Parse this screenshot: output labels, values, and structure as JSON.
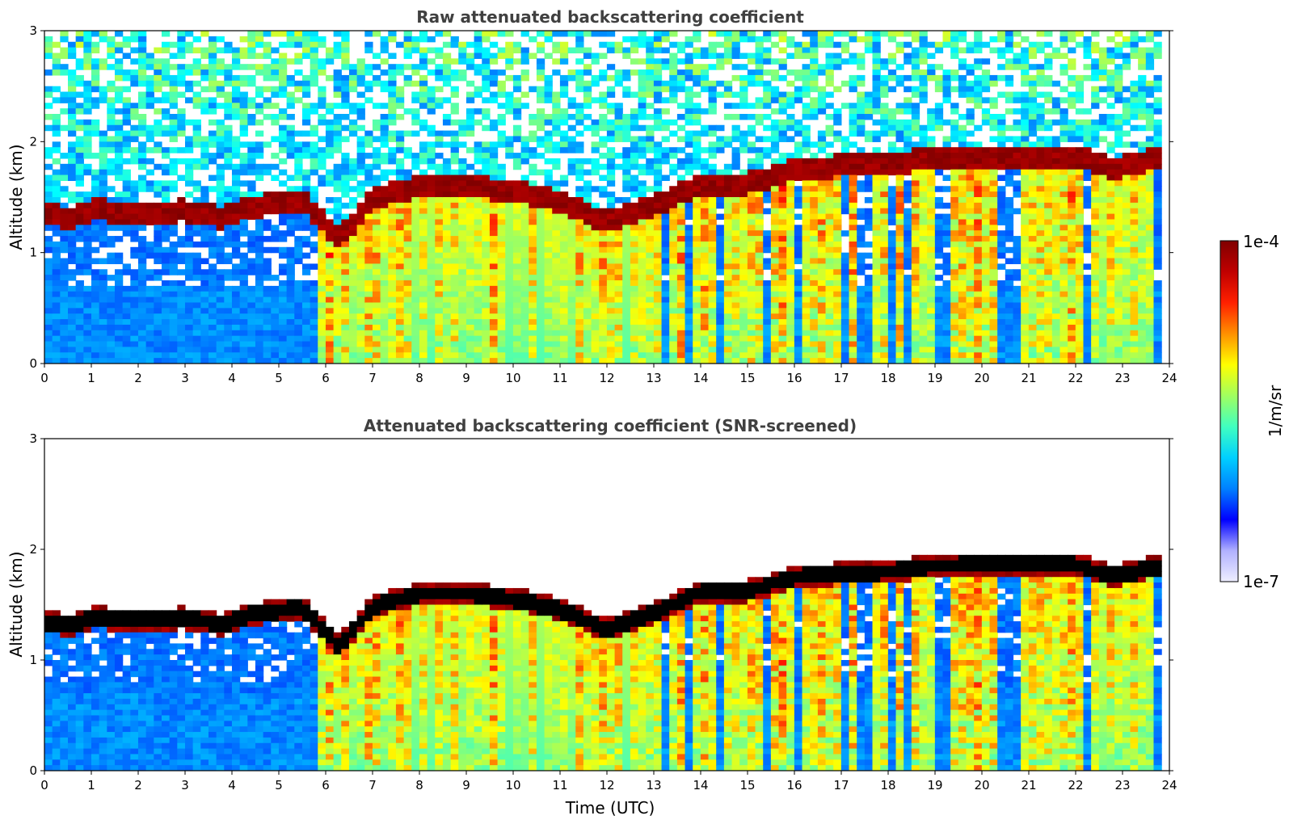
{
  "chart_data": [
    {
      "type": "heatmap",
      "title": "Raw attenuated backscattering coefficient",
      "xlabel": "",
      "ylabel": "Altitude (km)",
      "xlim": [
        0,
        24
      ],
      "ylim": [
        0,
        3
      ],
      "xticks": [
        "0",
        "1",
        "2",
        "3",
        "4",
        "5",
        "6",
        "7",
        "8",
        "9",
        "10",
        "11",
        "12",
        "13",
        "14",
        "15",
        "16",
        "17",
        "18",
        "19",
        "20",
        "21",
        "22",
        "23",
        "24"
      ],
      "yticks": [
        "0",
        "1",
        "2",
        "3"
      ],
      "colorscale": "jet",
      "cloud_base_km": [
        {
          "t": 0.0,
          "z": 1.35
        },
        {
          "t": 0.5,
          "z": 1.3
        },
        {
          "t": 1.0,
          "z": 1.38
        },
        {
          "t": 2.0,
          "z": 1.36
        },
        {
          "t": 3.0,
          "z": 1.38
        },
        {
          "t": 3.8,
          "z": 1.32
        },
        {
          "t": 4.5,
          "z": 1.42
        },
        {
          "t": 5.5,
          "z": 1.48
        },
        {
          "t": 6.3,
          "z": 1.12
        },
        {
          "t": 7.0,
          "z": 1.48
        },
        {
          "t": 8.0,
          "z": 1.6
        },
        {
          "t": 9.0,
          "z": 1.6
        },
        {
          "t": 10.0,
          "z": 1.55
        },
        {
          "t": 11.0,
          "z": 1.45
        },
        {
          "t": 12.0,
          "z": 1.28
        },
        {
          "t": 13.0,
          "z": 1.42
        },
        {
          "t": 14.0,
          "z": 1.62
        },
        {
          "t": 15.0,
          "z": 1.62
        },
        {
          "t": 16.0,
          "z": 1.75
        },
        {
          "t": 17.0,
          "z": 1.78
        },
        {
          "t": 18.0,
          "z": 1.8
        },
        {
          "t": 19.0,
          "z": 1.85
        },
        {
          "t": 20.0,
          "z": 1.86
        },
        {
          "t": 21.0,
          "z": 1.86
        },
        {
          "t": 22.0,
          "z": 1.86
        },
        {
          "t": 22.8,
          "z": 1.75
        },
        {
          "t": 23.8,
          "z": 1.85
        }
      ]
    },
    {
      "type": "heatmap",
      "title": "Attenuated backscattering coefficient (SNR-screened)",
      "xlabel": "Time (UTC)",
      "ylabel": "Altitude (km)",
      "xlim": [
        0,
        24
      ],
      "ylim": [
        0,
        3
      ],
      "xticks": [
        "0",
        "1",
        "2",
        "3",
        "4",
        "5",
        "6",
        "7",
        "8",
        "9",
        "10",
        "11",
        "12",
        "13",
        "14",
        "15",
        "16",
        "17",
        "18",
        "19",
        "20",
        "21",
        "22",
        "23",
        "24"
      ],
      "yticks": [
        "0",
        "1",
        "2",
        "3"
      ],
      "colorscale": "jet"
    }
  ],
  "colorbar": {
    "max_label": "1e-4",
    "min_label": "1e-7",
    "unit_label": "1/m/sr",
    "colors": [
      "#eeeeff",
      "#b0b0ff",
      "#0000ff",
      "#0080ff",
      "#00d0ff",
      "#40ffc0",
      "#a0ff60",
      "#ffff00",
      "#ff9000",
      "#ff2000",
      "#c00000",
      "#800000"
    ]
  }
}
